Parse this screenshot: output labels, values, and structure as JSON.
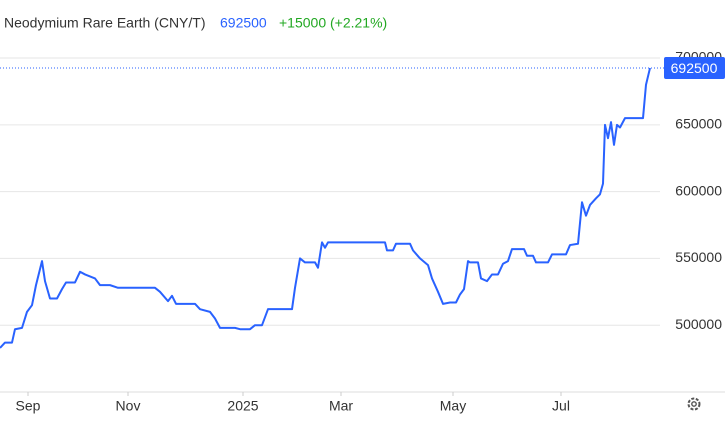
{
  "chart_data": {
    "type": "line",
    "title": "Neodymium Rare Earth (CNY/T)",
    "last_price": 692500,
    "change": "+15000 (+2.21%)",
    "x": [
      0,
      5,
      12,
      15,
      22,
      27,
      32,
      36,
      42,
      45,
      50,
      57,
      62,
      66,
      75,
      80,
      85,
      95,
      100,
      110,
      118,
      155,
      160,
      168,
      172,
      176,
      195,
      200,
      210,
      215,
      220,
      235,
      240,
      250,
      255,
      262,
      268,
      292,
      295,
      300,
      305,
      315,
      318,
      322,
      325,
      328,
      385,
      387,
      393,
      396,
      410,
      413,
      420,
      428,
      432,
      438,
      443,
      450,
      456,
      460,
      464,
      468,
      470,
      478,
      481,
      487,
      492,
      498,
      503,
      508,
      512,
      524,
      527,
      533,
      536,
      548,
      552,
      566,
      570,
      578,
      582,
      586,
      590,
      596,
      600,
      603,
      605,
      608,
      611,
      614,
      617,
      620,
      625,
      643,
      646,
      650
    ],
    "series": [
      {
        "name": "Neodymium Rare Earth (CNY/T)",
        "color": "#2962ff",
        "values": [
          483000,
          487000,
          487000,
          497000,
          498000,
          510000,
          515000,
          530000,
          548000,
          533000,
          520000,
          520000,
          527000,
          532000,
          532000,
          540000,
          538000,
          535000,
          530000,
          530000,
          528000,
          528000,
          525000,
          518000,
          522000,
          516000,
          516000,
          512000,
          510000,
          505000,
          498000,
          498000,
          497000,
          497000,
          500000,
          500000,
          512000,
          512000,
          528000,
          550000,
          547000,
          547000,
          543000,
          562000,
          558000,
          562000,
          562000,
          556000,
          556000,
          561000,
          561000,
          556000,
          550000,
          545000,
          535000,
          525000,
          516000,
          517000,
          517000,
          523000,
          527000,
          548000,
          547000,
          547000,
          535000,
          533000,
          538000,
          538000,
          546000,
          548000,
          557000,
          557000,
          552000,
          552000,
          547000,
          547000,
          553000,
          553000,
          560000,
          561000,
          592000,
          582000,
          590000,
          595000,
          598000,
          606000,
          650000,
          640000,
          652000,
          635000,
          650000,
          648000,
          655000,
          655000,
          680000,
          692500
        ]
      }
    ],
    "xlim": [
      0,
      660
    ],
    "xticks": [
      {
        "value": 28,
        "label": "Sep"
      },
      {
        "value": 128,
        "label": "Nov"
      },
      {
        "value": 243,
        "label": "2025"
      },
      {
        "value": 341,
        "label": "Mar"
      },
      {
        "value": 453,
        "label": "May"
      },
      {
        "value": 561,
        "label": "Jul"
      }
    ],
    "ylim": [
      450000,
      713500
    ],
    "yticks": [
      500000,
      550000,
      600000,
      650000,
      700000
    ],
    "grid": true
  }
}
